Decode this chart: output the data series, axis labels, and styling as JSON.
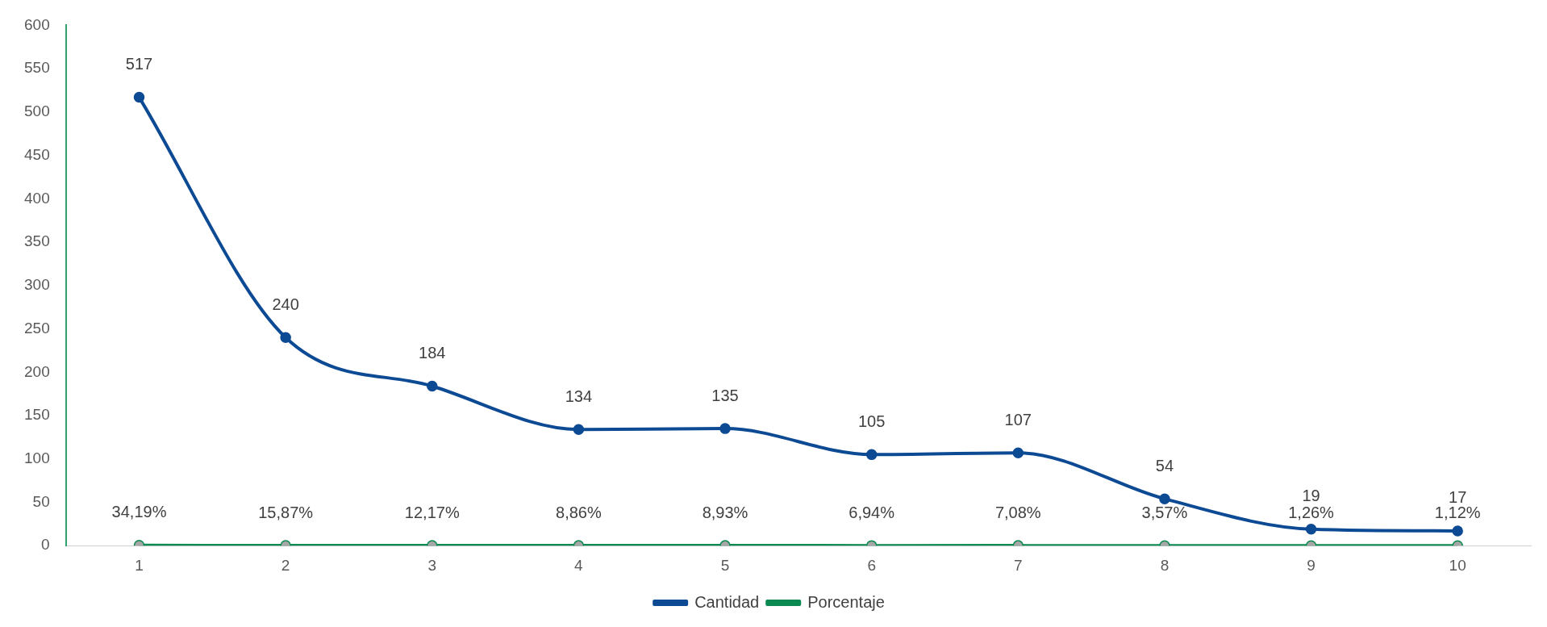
{
  "chart_data": {
    "type": "line",
    "categories": [
      "1",
      "2",
      "3",
      "4",
      "5",
      "6",
      "7",
      "8",
      "9",
      "10"
    ],
    "series": [
      {
        "name": "Cantidad",
        "color": "#0d4a94",
        "values": [
          517,
          240,
          184,
          134,
          135,
          105,
          107,
          54,
          19,
          17
        ],
        "value_labels": [
          "517",
          "240",
          "184",
          "134",
          "135",
          "105",
          "107",
          "54",
          "19",
          "17"
        ]
      },
      {
        "name": "Porcentaje",
        "color": "#0a8a50",
        "colors": [
          "#a6a6a6",
          "#a6a6a6",
          "#a6a6a6",
          "#a6a6a6",
          "#a6a6a6",
          "#a6a6a6",
          "#a6a6a6",
          "#a6a6a6",
          "#a6a6a6",
          "#a6a6a6"
        ],
        "values": [
          0.3419,
          0.1587,
          0.1217,
          0.0886,
          0.0893,
          0.0694,
          0.0708,
          0.0357,
          0.0126,
          0.0112
        ],
        "value_labels": [
          "34,19%",
          "15,87%",
          "12,17%",
          "8,86%",
          "8,93%",
          "6,94%",
          "7,08%",
          "3,57%",
          "1,26%",
          "1,12%"
        ]
      }
    ],
    "ylim": [
      0,
      600
    ],
    "yticks": [
      0,
      50,
      100,
      150,
      200,
      250,
      300,
      350,
      400,
      450,
      500,
      550,
      600
    ],
    "grid": false,
    "legend": "bottom",
    "marker": "circle",
    "line_style": "solid"
  }
}
